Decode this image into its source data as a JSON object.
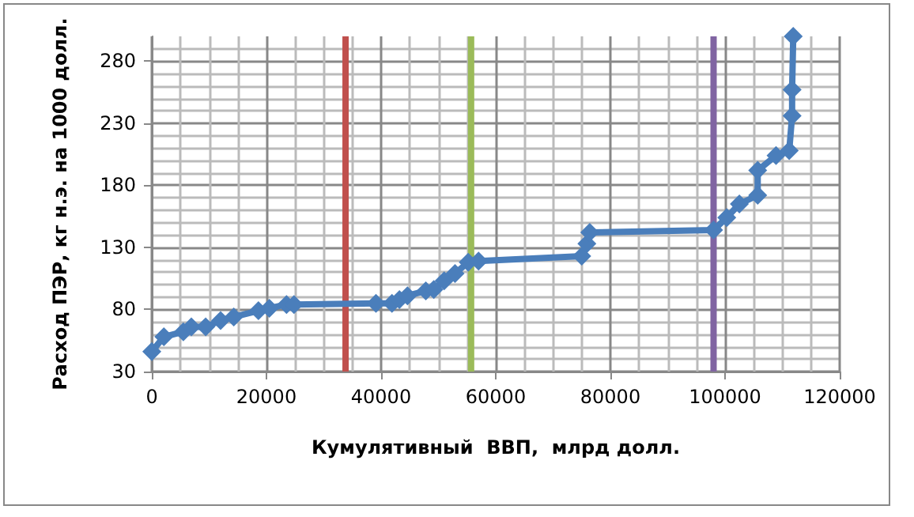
{
  "chart_data": {
    "type": "line",
    "xlabel": "Кумулятивный  ВВП,  млрд долл.",
    "ylabel": "Расход ПЭР, кг н.э. на 1000 долл.",
    "x": [
      0,
      2100,
      5500,
      6900,
      9400,
      12000,
      14300,
      18600,
      20500,
      23500,
      24800,
      39100,
      41900,
      43200,
      44600,
      47800,
      49200,
      51000,
      52900,
      55200,
      57000,
      75000,
      75900,
      76400,
      98000,
      100300,
      102500,
      105700,
      105700,
      108900,
      111200,
      111700,
      111700,
      111900
    ],
    "series": [
      {
        "color": "#4a7ebb",
        "values": [
          46,
          58,
          62,
          66,
          66,
          71,
          74,
          79,
          81,
          84,
          84,
          85,
          85,
          88,
          91,
          95,
          96,
          103,
          109,
          118,
          119,
          123,
          133,
          142,
          144,
          154,
          165,
          172,
          192,
          204,
          208,
          236,
          257,
          300
        ]
      }
    ],
    "xlim": [
      0,
      120000
    ],
    "xticks": [
      0,
      20000,
      40000,
      60000,
      80000,
      100000,
      120000
    ],
    "ylim": [
      30,
      300
    ],
    "yticks": [
      30,
      80,
      130,
      180,
      230,
      280
    ],
    "grid": true,
    "marker": "diamond",
    "line_style": "solid",
    "ref_lines": [
      {
        "axis": "x",
        "value": 33800,
        "color": "#c0504d"
      },
      {
        "axis": "x",
        "value": 55700,
        "color": "#9bbb59"
      },
      {
        "axis": "x",
        "value": 98000,
        "color": "#8064a2"
      }
    ]
  }
}
